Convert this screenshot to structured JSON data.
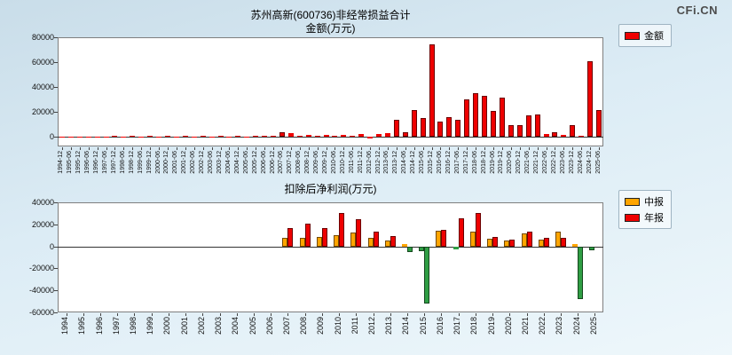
{
  "logo": "CFi.CN",
  "chart_data": [
    {
      "type": "bar",
      "title": "苏州高新(600736)非经常损益合计",
      "subtitle": "金额(万元)",
      "legend": [
        {
          "label": "金额",
          "color": "#ee0000"
        }
      ],
      "ylim": [
        -8000,
        80000
      ],
      "yticks": [
        80000,
        60000,
        40000,
        20000,
        0
      ],
      "color": "#ee0000",
      "negative_color": "#ee0000",
      "grid": false,
      "legend_position": "outside-right-top",
      "categories": [
        "1994-12",
        "1995-06",
        "1995-12",
        "1996-06",
        "1996-12",
        "1997-06",
        "1997-12",
        "1998-06",
        "1998-12",
        "1999-06",
        "1999-12",
        "2000-06",
        "2000-12",
        "2001-06",
        "2001-12",
        "2002-06",
        "2002-12",
        "2003-06",
        "2003-12",
        "2004-06",
        "2004-12",
        "2005-06",
        "2005-12",
        "2006-06",
        "2006-12",
        "2007-06",
        "2007-12",
        "2008-06",
        "2008-12",
        "2009-06",
        "2009-12",
        "2010-06",
        "2010-12",
        "2011-06",
        "2011-12",
        "2012-06",
        "2012-12",
        "2013-06",
        "2013-12",
        "2014-06",
        "2014-12",
        "2015-06",
        "2015-12",
        "2016-06",
        "2016-12",
        "2017-06",
        "2017-12",
        "2018-06",
        "2018-12",
        "2019-06",
        "2019-12",
        "2020-06",
        "2020-12",
        "2021-06",
        "2021-12",
        "2022-06",
        "2022-12",
        "2023-06",
        "2023-12",
        "2024-06",
        "2024-12",
        "2025-06"
      ],
      "values": [
        100,
        100,
        150,
        100,
        200,
        150,
        250,
        100,
        300,
        150,
        300,
        200,
        400,
        150,
        350,
        200,
        400,
        150,
        500,
        200,
        600,
        200,
        450,
        250,
        800,
        3500,
        2500,
        800,
        1500,
        600,
        1200,
        500,
        1500,
        800,
        2000,
        -1500,
        1800,
        2500,
        13500,
        3500,
        21000,
        15000,
        74000,
        12000,
        15500,
        13500,
        30000,
        35000,
        33000,
        20500,
        31000,
        9000,
        9500,
        17000,
        17500,
        2000,
        3500,
        1500,
        9000,
        500,
        61000,
        21000
      ]
    },
    {
      "type": "bar",
      "title": "扣除后净利润(万元)",
      "legend": [
        {
          "label": "中报",
          "color": "#ffa500"
        },
        {
          "label": "年报",
          "color": "#ee0000"
        }
      ],
      "ylim": [
        -60000,
        40000
      ],
      "yticks": [
        40000,
        20000,
        0,
        -20000,
        -40000,
        -60000
      ],
      "negative_color": "#2f9e44",
      "grid": false,
      "legend_position": "outside-right-top",
      "categories": [
        "1994",
        "1995",
        "1996",
        "1997",
        "1998",
        "1999",
        "2000",
        "2001",
        "2002",
        "2003",
        "2004",
        "2005",
        "2006",
        "2007",
        "2008",
        "2009",
        "2010",
        "2011",
        "2012",
        "2013",
        "2014",
        "2015",
        "2016",
        "2017",
        "2018",
        "2019",
        "2020",
        "2021",
        "2022",
        "2023",
        "2024",
        "2025"
      ],
      "series": [
        {
          "name": "中报",
          "color": "#ffa500",
          "values": [
            null,
            null,
            null,
            null,
            null,
            null,
            null,
            null,
            null,
            null,
            null,
            null,
            null,
            8000,
            8000,
            8500,
            10000,
            12500,
            8000,
            5000,
            2500,
            -4000,
            14000,
            -2500,
            13000,
            7000,
            5000,
            12000,
            6500,
            13500,
            2500,
            -3500
          ]
        },
        {
          "name": "年报",
          "color": "#ee0000",
          "values": [
            null,
            null,
            null,
            null,
            null,
            null,
            null,
            null,
            null,
            null,
            null,
            null,
            null,
            17000,
            20500,
            17000,
            30500,
            25000,
            13500,
            9500,
            -5500,
            -52000,
            15000,
            25500,
            30000,
            8500,
            6500,
            13500,
            7500,
            8000,
            -48000,
            null
          ]
        }
      ]
    }
  ]
}
